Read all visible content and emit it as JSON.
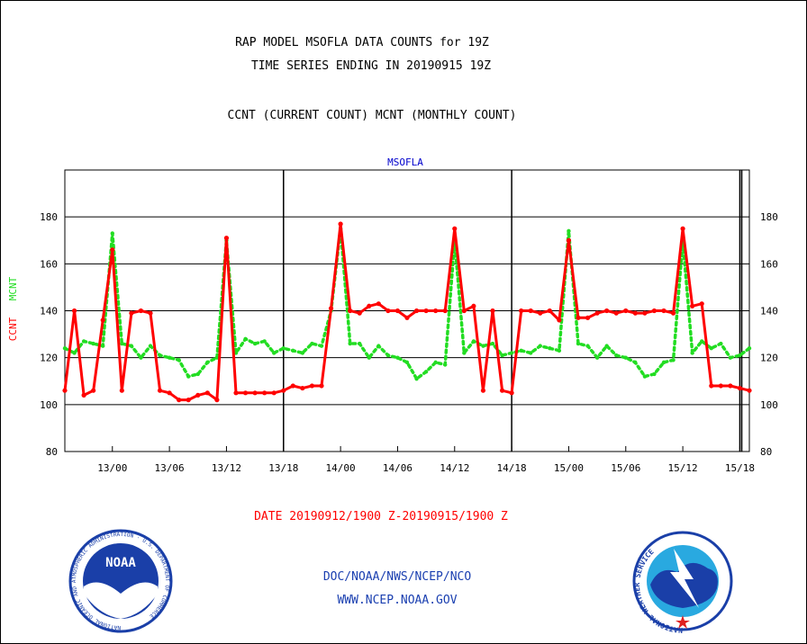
{
  "header": {
    "line1": "RAP MODEL MSOFLA DATA COUNTS for 19Z",
    "line2": "TIME SERIES ENDING IN 20190915 19Z",
    "line3": "CCNT (CURRENT COUNT) MCNT (MONTHLY COUNT)"
  },
  "footer": {
    "date_range": "DATE 20190912/1900 Z-20190915/1900 Z",
    "org": "DOC/NOAA/NWS/NCEP/NCO",
    "url": "WWW.NCEP.NOAA.GOV"
  },
  "logos": {
    "noaa": {
      "text": "NOAA",
      "ring_text": "NATIONAL OCEANIC AND ATMOSPHERIC ADMINISTRATION · U.S. DEPARTMENT OF COMMERCE"
    },
    "nws": {
      "ring_text": "NATIONAL WEATHER SERVICE"
    }
  },
  "colors": {
    "ccnt": "#ff0000",
    "mcnt": "#22dd22",
    "title_blue": "#0000cc",
    "noaa_blue": "#1a3fa8"
  },
  "chart_data": {
    "type": "line",
    "title": "MSOFLA",
    "ylabel_left": [
      "CCNT",
      "MCNT"
    ],
    "ylim": [
      80,
      200
    ],
    "yticks": [
      80,
      100,
      120,
      140,
      160,
      180
    ],
    "xticks": [
      "13/00",
      "13/06",
      "13/12",
      "13/18",
      "14/00",
      "14/06",
      "14/12",
      "14/18",
      "15/00",
      "15/06",
      "15/12",
      "15/18"
    ],
    "xlim_hours_from_12_19z": [
      0,
      72
    ],
    "day_boundaries": [
      "13/18",
      "14/18",
      "15/18"
    ],
    "grid": true,
    "series": [
      {
        "name": "CCNT",
        "color": "#ff0000",
        "values": [
          106,
          140,
          104,
          106,
          136,
          166,
          106,
          139,
          140,
          139,
          106,
          105,
          102,
          102,
          104,
          105,
          102,
          171,
          105,
          105,
          105,
          105,
          105,
          106,
          108,
          107,
          108,
          108,
          141,
          177,
          140,
          139,
          142,
          143,
          140,
          140,
          137,
          140,
          140,
          140,
          140,
          175,
          140,
          142,
          106,
          140,
          106,
          105,
          140,
          140,
          139,
          140,
          136,
          170,
          137,
          137,
          139,
          140,
          139,
          140,
          139,
          139,
          140,
          140,
          139,
          175,
          142,
          143,
          108,
          108,
          108,
          107,
          106
        ]
      },
      {
        "name": "MCNT",
        "color": "#22dd22",
        "values": [
          124,
          122,
          127,
          126,
          125,
          173,
          126,
          125,
          120,
          125,
          121,
          120,
          119,
          112,
          113,
          118,
          120,
          170,
          122,
          128,
          126,
          127,
          122,
          124,
          123,
          122,
          126,
          125,
          140,
          175,
          126,
          126,
          120,
          125,
          121,
          120,
          118,
          111,
          114,
          118,
          117,
          170,
          122,
          127,
          125,
          126,
          121,
          122,
          123,
          122,
          125,
          124,
          123,
          174,
          126,
          125,
          120,
          125,
          121,
          120,
          118,
          112,
          113,
          118,
          119,
          170,
          122,
          127,
          124,
          126,
          120,
          121,
          124
        ]
      }
    ]
  }
}
